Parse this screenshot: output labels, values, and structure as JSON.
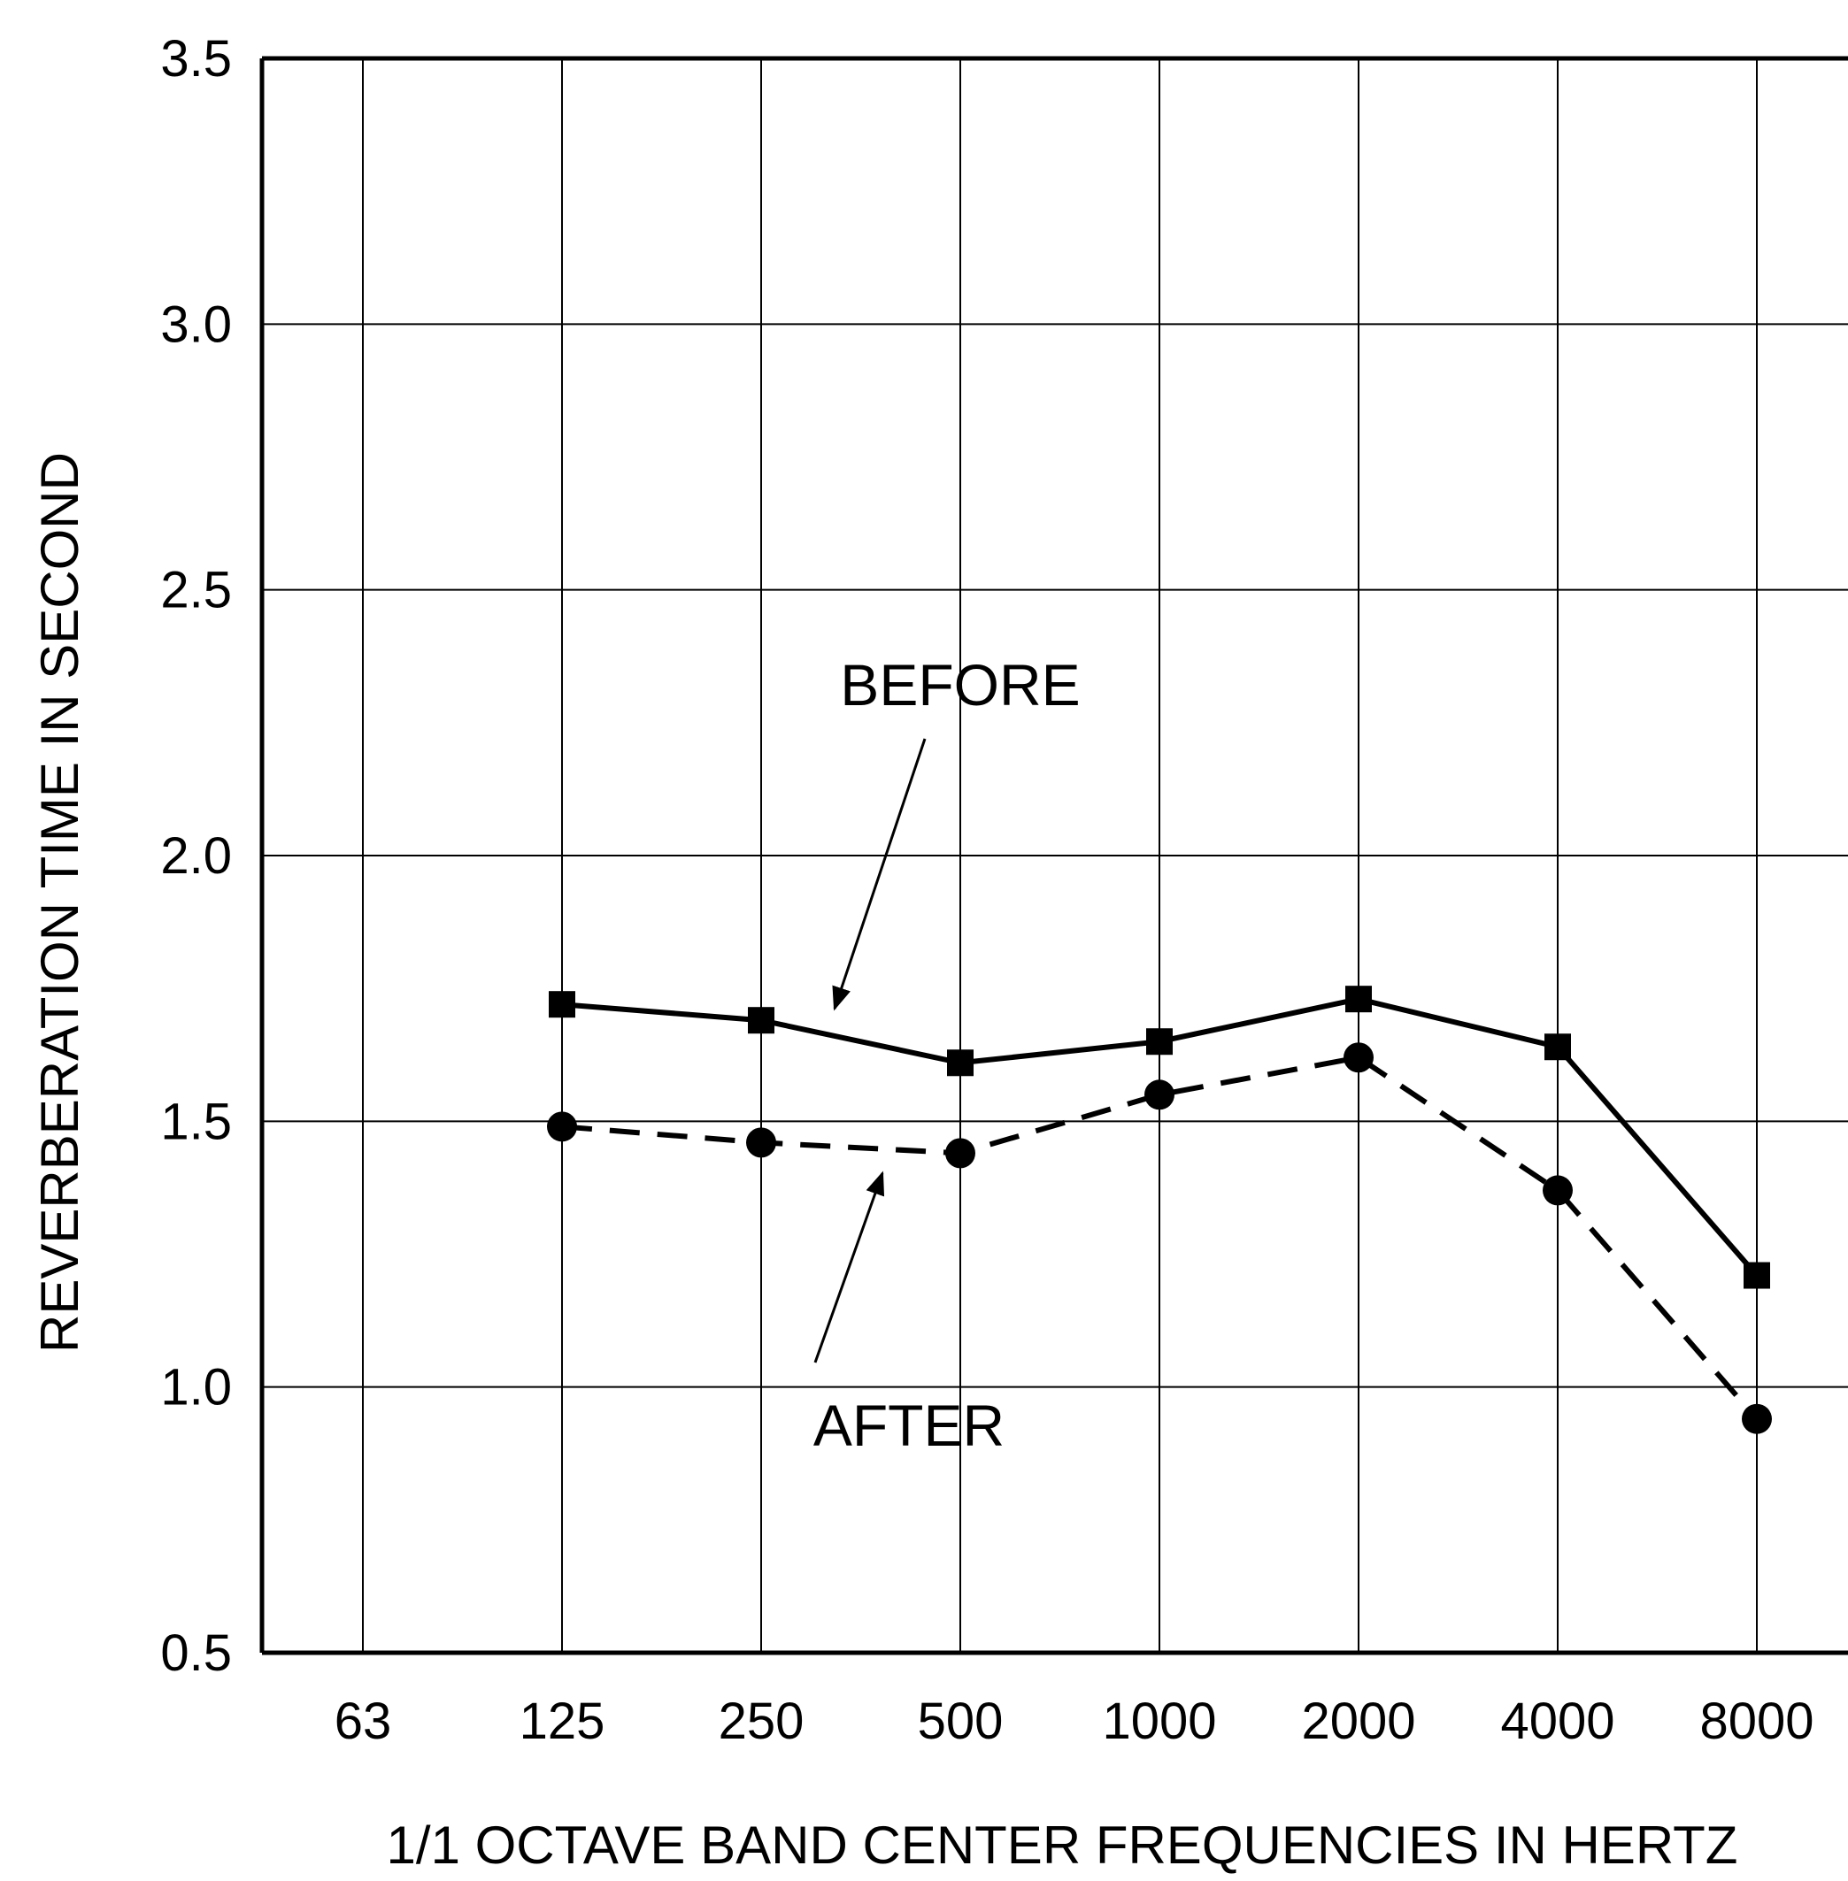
{
  "chart_data": {
    "type": "line",
    "xlabel": "1/1 OCTAVE BAND CENTER FREQUENCIES IN HERTZ",
    "ylabel": "REVERBERATION TIME IN SECOND",
    "categories": [
      "63",
      "125",
      "250",
      "500",
      "1000",
      "2000",
      "4000",
      "8000"
    ],
    "ylim": [
      0.5,
      3.5
    ],
    "yticks": [
      "0.5",
      "1.0",
      "1.5",
      "2.0",
      "2.5",
      "3.0",
      "3.5"
    ],
    "grid": true,
    "series": [
      {
        "name": "BEFORE",
        "style": "solid",
        "marker": "square",
        "values": [
          null,
          1.72,
          1.69,
          1.61,
          1.65,
          1.73,
          1.64,
          1.21
        ]
      },
      {
        "name": "AFTER",
        "style": "dashed",
        "marker": "circle",
        "values": [
          null,
          1.49,
          1.46,
          1.44,
          1.55,
          1.62,
          1.37,
          0.94
        ]
      }
    ],
    "annotations": [
      {
        "text": "BEFORE",
        "target_series": 0
      },
      {
        "text": "AFTER",
        "target_series": 1
      }
    ]
  },
  "colors": {
    "line": "#000000",
    "grid": "#000000",
    "background": "#ffffff"
  }
}
